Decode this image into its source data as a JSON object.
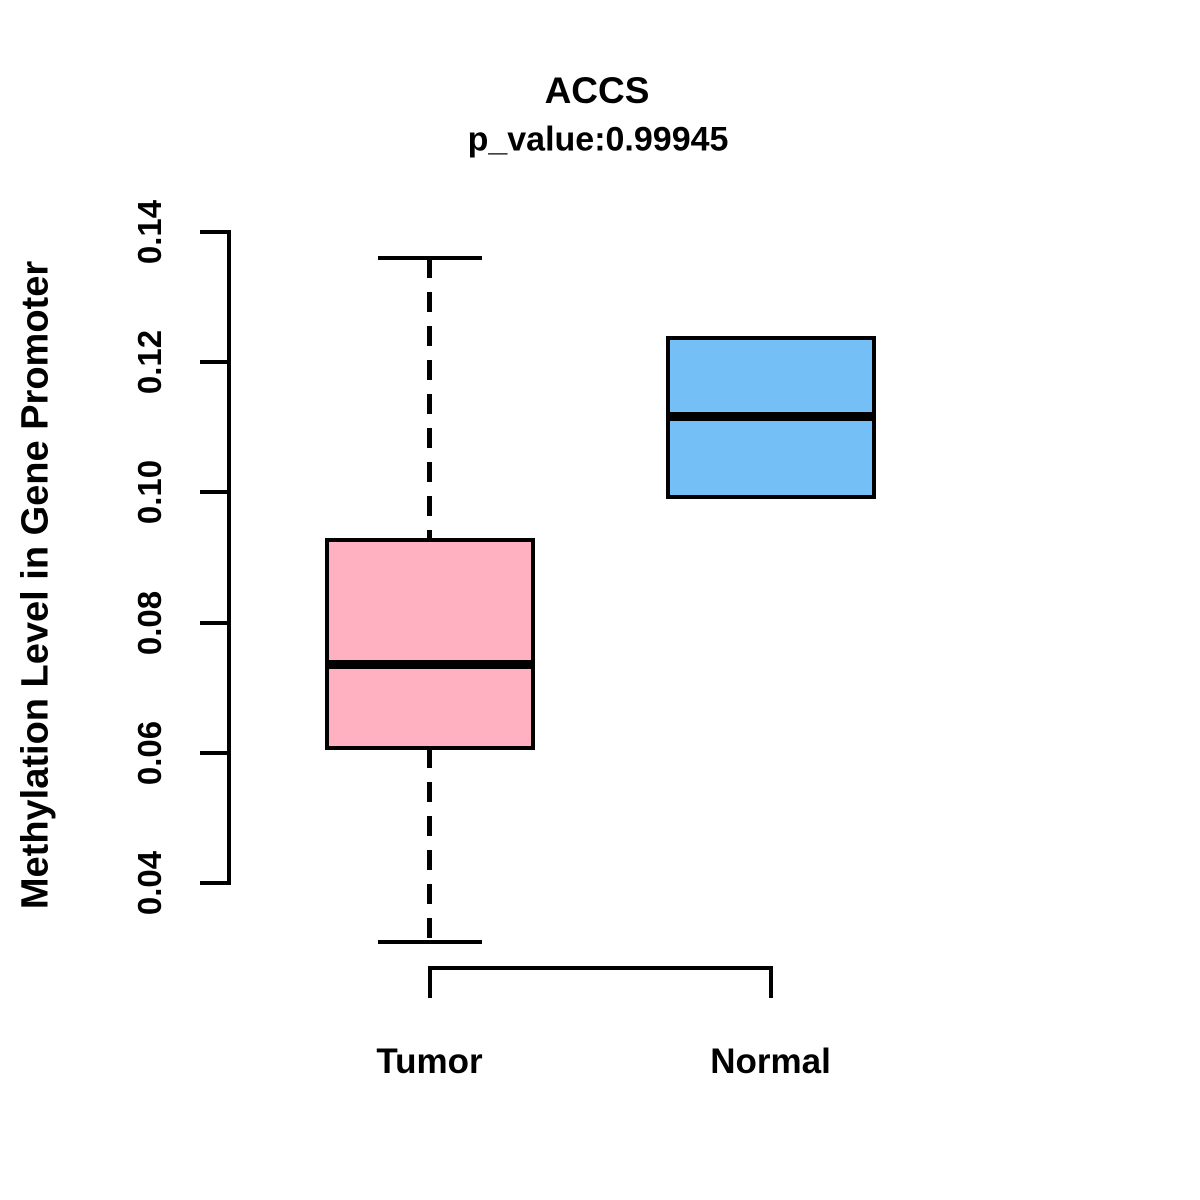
{
  "chart_data": {
    "type": "boxplot",
    "title": "ACCS",
    "subtitle": "p_value:0.99945",
    "ylabel": "Methylation Level in Gene Promoter",
    "xlabel": "",
    "categories": [
      "Tumor",
      "Normal"
    ],
    "ytick_labels": [
      "0.04",
      "0.06",
      "0.08",
      "0.10",
      "0.12",
      "0.14"
    ],
    "yaxis_range": [
      0.04,
      0.14
    ],
    "grid": false,
    "legend": "none",
    "background_color": "#ffffff",
    "stroke_color": "#000000",
    "series": [
      {
        "name": "Tumor",
        "color": "#FFB0C1",
        "whisker_low": 0.0309,
        "q1": 0.0608,
        "median": 0.0735,
        "q3": 0.0927,
        "whisker_high": 0.136
      },
      {
        "name": "Normal",
        "color": "#74BFF5",
        "whisker_low": 0.0993,
        "q1": 0.0993,
        "median": 0.1116,
        "q3": 0.1237,
        "whisker_high": 0.1237
      }
    ]
  }
}
